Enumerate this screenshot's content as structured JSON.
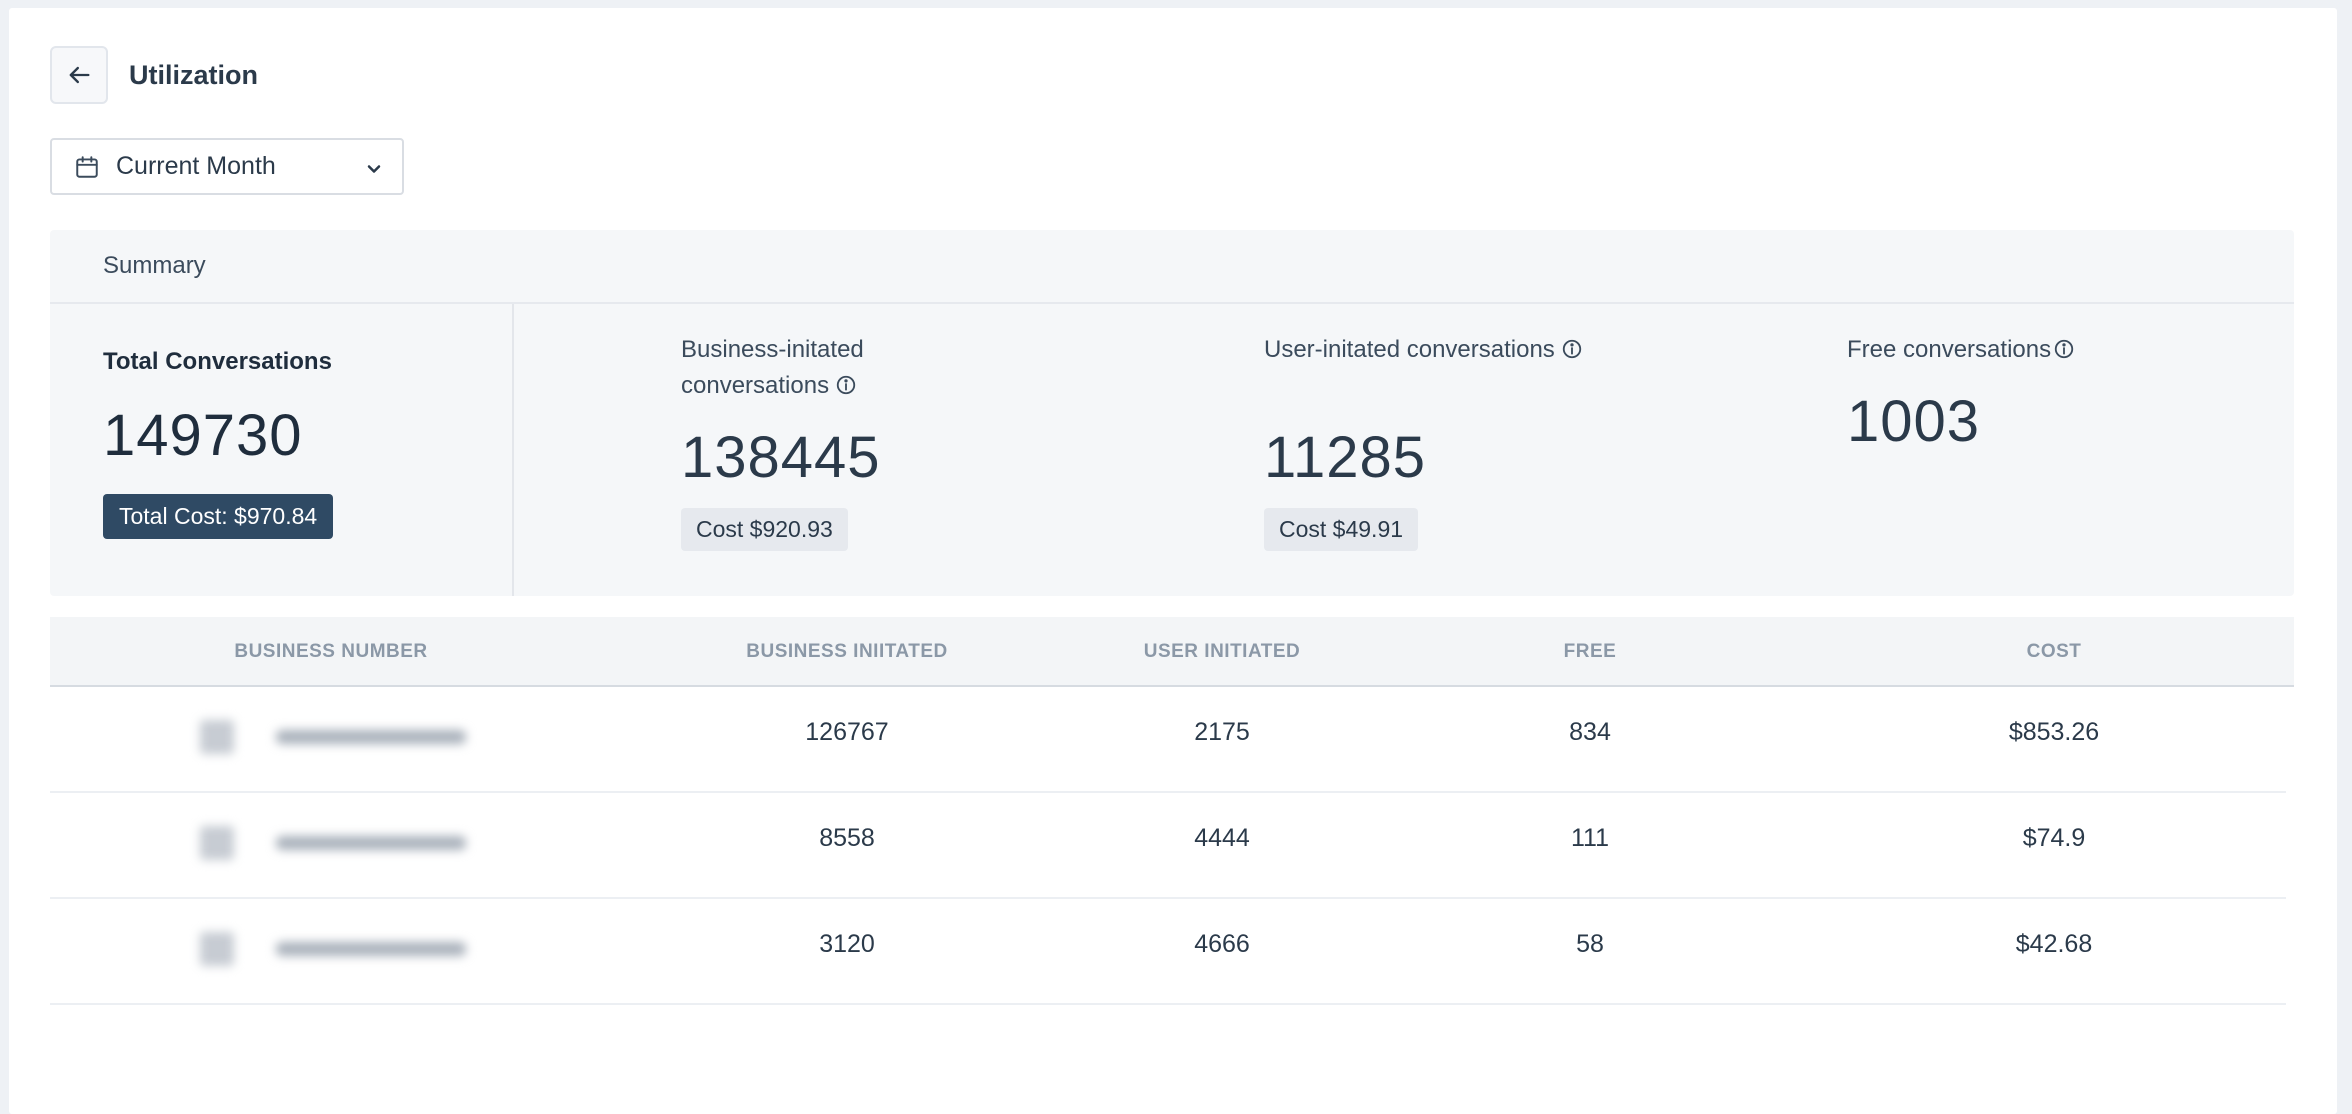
{
  "header": {
    "title": "Utilization"
  },
  "filters": {
    "date_range": "Current Month"
  },
  "summary": {
    "title": "Summary",
    "total": {
      "label": "Total Conversations",
      "value": "149730",
      "cost": "Total Cost: $970.84"
    },
    "business_initiated": {
      "label": "Business-initated conversations",
      "value": "138445",
      "cost": "Cost $920.93"
    },
    "user_initiated": {
      "label": "User-initated conversations",
      "value": "11285",
      "cost": "Cost $49.91"
    },
    "free": {
      "label": "Free conversations",
      "value": "1003"
    }
  },
  "table": {
    "columns": [
      "BUSINESS NUMBER",
      "BUSINESS INIITATED",
      "USER INITIATED",
      "FREE",
      "COST"
    ],
    "rows": [
      {
        "business_initiated": "126767",
        "user_initiated": "2175",
        "free": "834",
        "cost": "$853.26"
      },
      {
        "business_initiated": "8558",
        "user_initiated": "4444",
        "free": "111",
        "cost": "$74.9"
      },
      {
        "business_initiated": "3120",
        "user_initiated": "4666",
        "free": "58",
        "cost": "$42.68"
      }
    ]
  },
  "colors": {
    "badge_dark": "#2f4a64",
    "summary_bg": "#f5f7f9",
    "header_text_muted": "#8b98a7"
  },
  "icons": {
    "back": "arrow-left-icon",
    "calendar": "calendar-icon",
    "dropdown": "chevron-down-icon",
    "info": "info-icon"
  }
}
